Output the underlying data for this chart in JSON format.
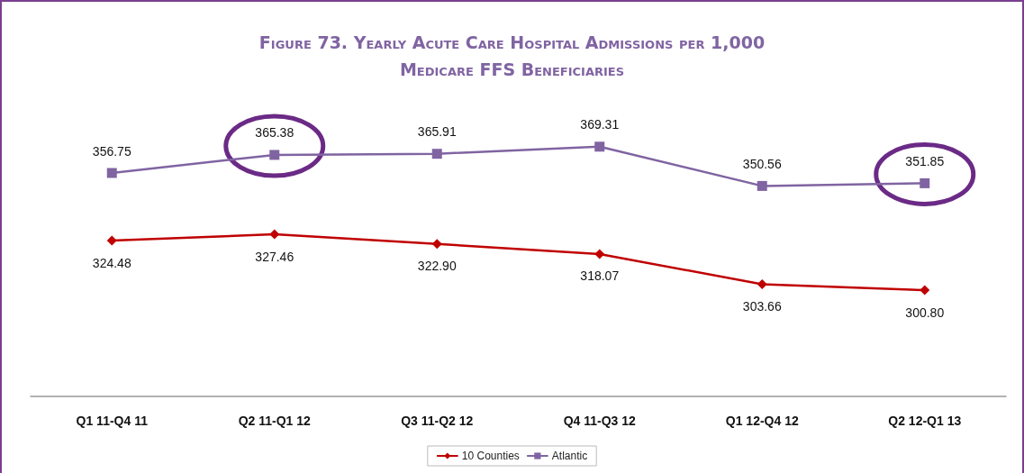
{
  "chart_data": {
    "type": "line",
    "title": "Figure 73. Yearly Acute Care Hospital Admissions per 1,000 Medicare FFS Beneficiaries",
    "categories": [
      "Q1 11-Q4 11",
      "Q2 11-Q1 12",
      "Q3 11-Q2 12",
      "Q4 11-Q3 12",
      "Q1 12-Q4 12",
      "Q2 12-Q1 13"
    ],
    "series": [
      {
        "name": "10 Counties",
        "color": "#c00000",
        "marker": "diamond",
        "values": [
          324.48,
          327.46,
          322.9,
          318.07,
          303.66,
          300.8
        ],
        "value_labels": [
          "324.48",
          "327.46",
          "322.90",
          "318.07",
          "303.66",
          "300.80"
        ]
      },
      {
        "name": "Atlantic",
        "color": "#8064a2",
        "marker": "square",
        "values": [
          356.75,
          365.38,
          365.91,
          369.31,
          350.56,
          351.85
        ],
        "value_labels": [
          "356.75",
          "365.38",
          "365.91",
          "369.31",
          "350.56",
          "351.85"
        ]
      }
    ],
    "legend": "bottom",
    "line_style": "solid"
  }
}
